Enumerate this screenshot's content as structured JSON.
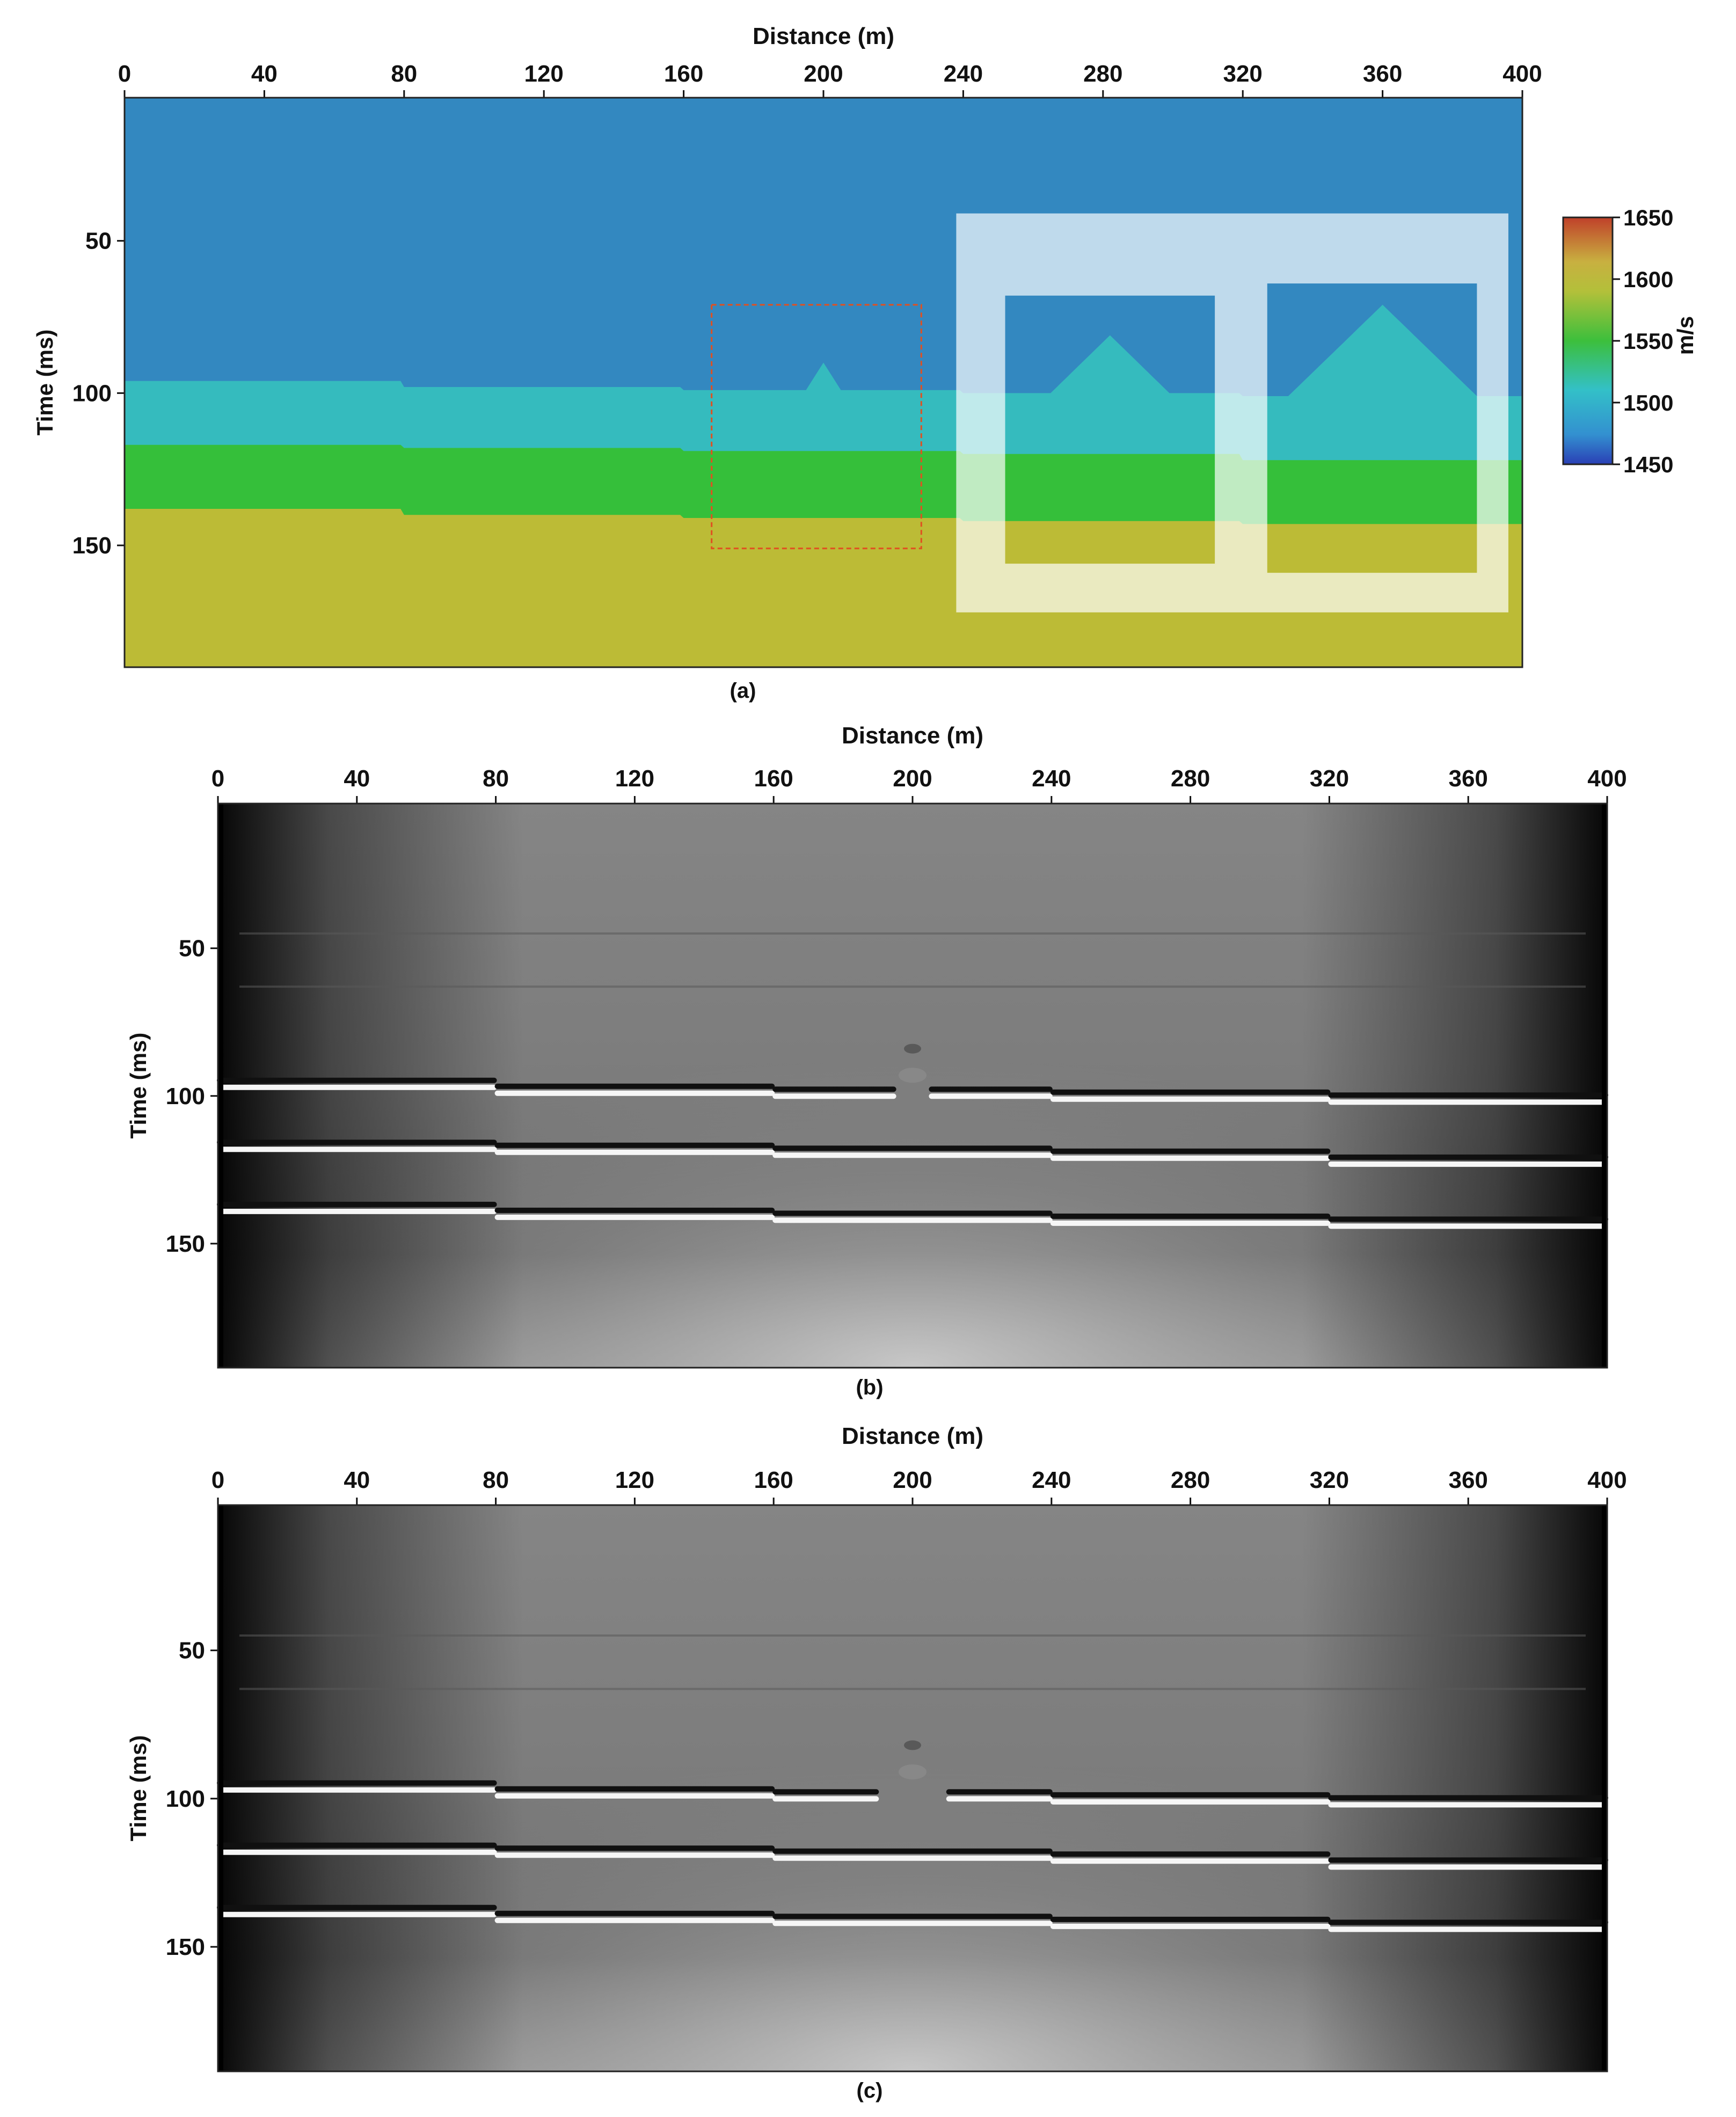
{
  "colors": {
    "water": "#3388c0",
    "layer_cyan": "#35bbbe",
    "layer_green": "#35bf3a",
    "layer_olive": "#bcbb36",
    "overlay": "#ffffff",
    "dashed_box": "#e05020",
    "seismic_bg": "#6e6e6e"
  },
  "chart_data": [
    {
      "id": "a",
      "type": "heatmap",
      "caption": "(a)",
      "title": "Distance (m)",
      "ylabel": "Time (ms)",
      "xlim": [
        0,
        400
      ],
      "ylim": [
        190,
        3
      ],
      "xticks": [
        0,
        40,
        80,
        120,
        160,
        200,
        240,
        280,
        320,
        360,
        400
      ],
      "yticks": [
        50,
        100,
        150
      ],
      "colorbar": {
        "label": "m/s",
        "range": [
          1450,
          1650
        ],
        "ticks": [
          1650,
          1600,
          1550,
          1500,
          1450
        ]
      },
      "velocities_mps": [
        1490,
        1520,
        1565,
        1605
      ],
      "interfaces": [
        {
          "name": "interface-1",
          "segments": [
            [
              0,
              80,
              96
            ],
            [
              80,
              160,
              98
            ],
            [
              160,
              240,
              99
            ],
            [
              240,
              320,
              100
            ],
            [
              320,
              400,
              101
            ]
          ],
          "bumps": [
            {
              "center": 200,
              "half_width": 5,
              "height": 9
            },
            {
              "center": 282,
              "half_width": 17,
              "height": 19
            },
            {
              "center": 360,
              "half_width": 27,
              "height": 30
            }
          ]
        },
        {
          "name": "interface-2",
          "segments": [
            [
              0,
              80,
              117
            ],
            [
              80,
              160,
              118
            ],
            [
              160,
              240,
              119
            ],
            [
              240,
              320,
              120
            ],
            [
              320,
              400,
              122
            ]
          ]
        },
        {
          "name": "interface-3",
          "segments": [
            [
              0,
              80,
              138
            ],
            [
              80,
              160,
              140
            ],
            [
              160,
              240,
              141
            ],
            [
              240,
              320,
              142
            ],
            [
              320,
              400,
              143
            ]
          ]
        }
      ],
      "annotations": {
        "dashed_box": {
          "x": [
            168,
            228
          ],
          "t": [
            71,
            151
          ]
        },
        "highlight_box": {
          "x": [
            238,
            396
          ],
          "t": [
            41,
            172
          ]
        },
        "insets": [
          {
            "x": [
              252,
              312
            ],
            "t": [
              68,
              156
            ]
          },
          {
            "x": [
              327,
              387
            ],
            "t": [
              64,
              159
            ]
          }
        ]
      }
    },
    {
      "id": "b",
      "type": "heatmap",
      "caption": "(b)",
      "title": "Distance (m)",
      "ylabel": "Time (ms)",
      "xlim": [
        0,
        400
      ],
      "ylim": [
        192,
        1
      ],
      "xticks": [
        0,
        40,
        80,
        120,
        160,
        200,
        240,
        280,
        320,
        360,
        400
      ],
      "yticks": [
        50,
        100,
        150
      ],
      "reflectors": [
        {
          "segments": [
            [
              0,
              80,
              96
            ],
            [
              80,
              160,
              98
            ],
            [
              160,
              240,
              99
            ],
            [
              240,
              320,
              100
            ],
            [
              320,
              400,
              101
            ]
          ],
          "gap": [
            195,
            205
          ],
          "diffraction_t": 84
        },
        {
          "segments": [
            [
              0,
              80,
              117
            ],
            [
              80,
              160,
              118
            ],
            [
              160,
              240,
              119
            ],
            [
              240,
              320,
              120
            ],
            [
              320,
              400,
              122
            ]
          ]
        },
        {
          "segments": [
            [
              0,
              80,
              138
            ],
            [
              80,
              160,
              140
            ],
            [
              160,
              240,
              141
            ],
            [
              240,
              320,
              142
            ],
            [
              320,
              400,
              143
            ]
          ]
        }
      ],
      "faint_events_t": [
        45,
        63
      ]
    },
    {
      "id": "c",
      "type": "heatmap",
      "caption": "(c)",
      "title": "Distance (m)",
      "ylabel": "Time (ms)",
      "xlim": [
        0,
        400
      ],
      "ylim": [
        192,
        1
      ],
      "xticks": [
        0,
        40,
        80,
        120,
        160,
        200,
        240,
        280,
        320,
        360,
        400
      ],
      "yticks": [
        50,
        100,
        150
      ],
      "reflectors": [
        {
          "segments": [
            [
              0,
              80,
              96
            ],
            [
              80,
              160,
              98
            ],
            [
              160,
              240,
              99
            ],
            [
              240,
              320,
              100
            ],
            [
              320,
              400,
              101
            ]
          ],
          "gap": [
            190,
            210
          ],
          "diffraction_t": 82
        },
        {
          "segments": [
            [
              0,
              80,
              117
            ],
            [
              80,
              160,
              118
            ],
            [
              160,
              240,
              119
            ],
            [
              240,
              320,
              120
            ],
            [
              320,
              400,
              122
            ]
          ]
        },
        {
          "segments": [
            [
              0,
              80,
              138
            ],
            [
              80,
              160,
              140
            ],
            [
              160,
              240,
              141
            ],
            [
              240,
              320,
              142
            ],
            [
              320,
              400,
              143
            ]
          ]
        }
      ],
      "faint_events_t": [
        45,
        63
      ]
    }
  ]
}
